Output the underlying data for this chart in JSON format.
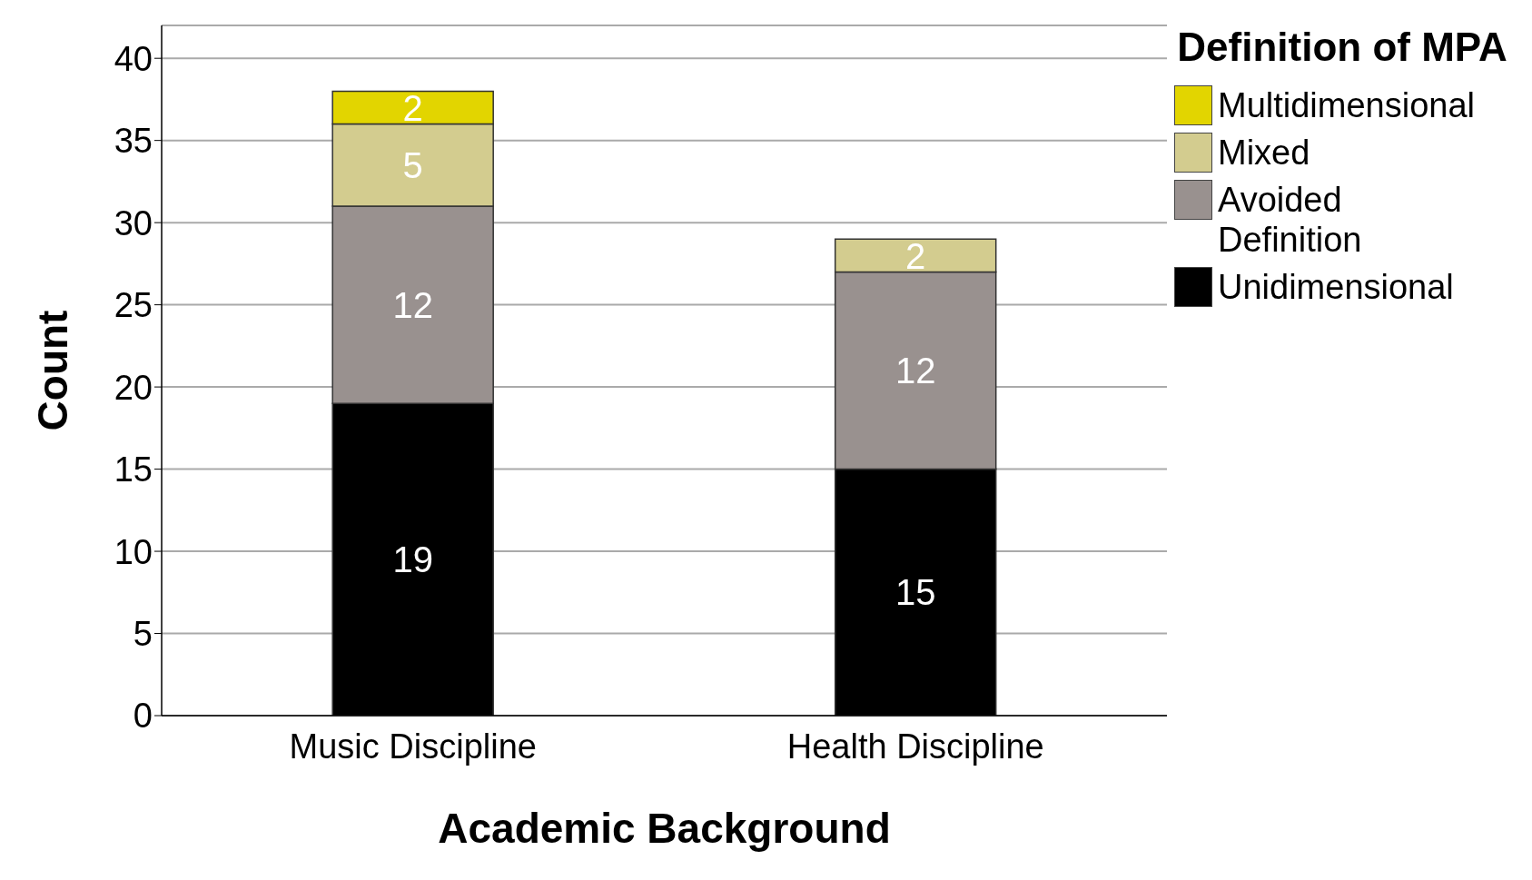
{
  "chart_data": {
    "type": "bar",
    "xlabel": "Academic Background",
    "ylabel": "Count",
    "legend_title": "Definition of MPA",
    "categories": [
      "Music Discipline",
      "Health Discipline"
    ],
    "stacked": true,
    "series": [
      {
        "name": "Unidimensional",
        "color": "#000000",
        "values": [
          19,
          15
        ]
      },
      {
        "name": "Avoided Definition",
        "color": "#99918f",
        "values": [
          12,
          12
        ]
      },
      {
        "name": "Mixed",
        "color": "#d3cc8f",
        "values": [
          5,
          2
        ]
      },
      {
        "name": "Multidimensional",
        "color": "#e2d500",
        "values": [
          2,
          null
        ]
      }
    ],
    "ylim": [
      0,
      42
    ],
    "yticks": [
      0,
      5,
      10,
      15,
      20,
      25,
      30,
      35,
      40
    ],
    "grid": "y",
    "legend": "top right",
    "data_labels": true
  }
}
